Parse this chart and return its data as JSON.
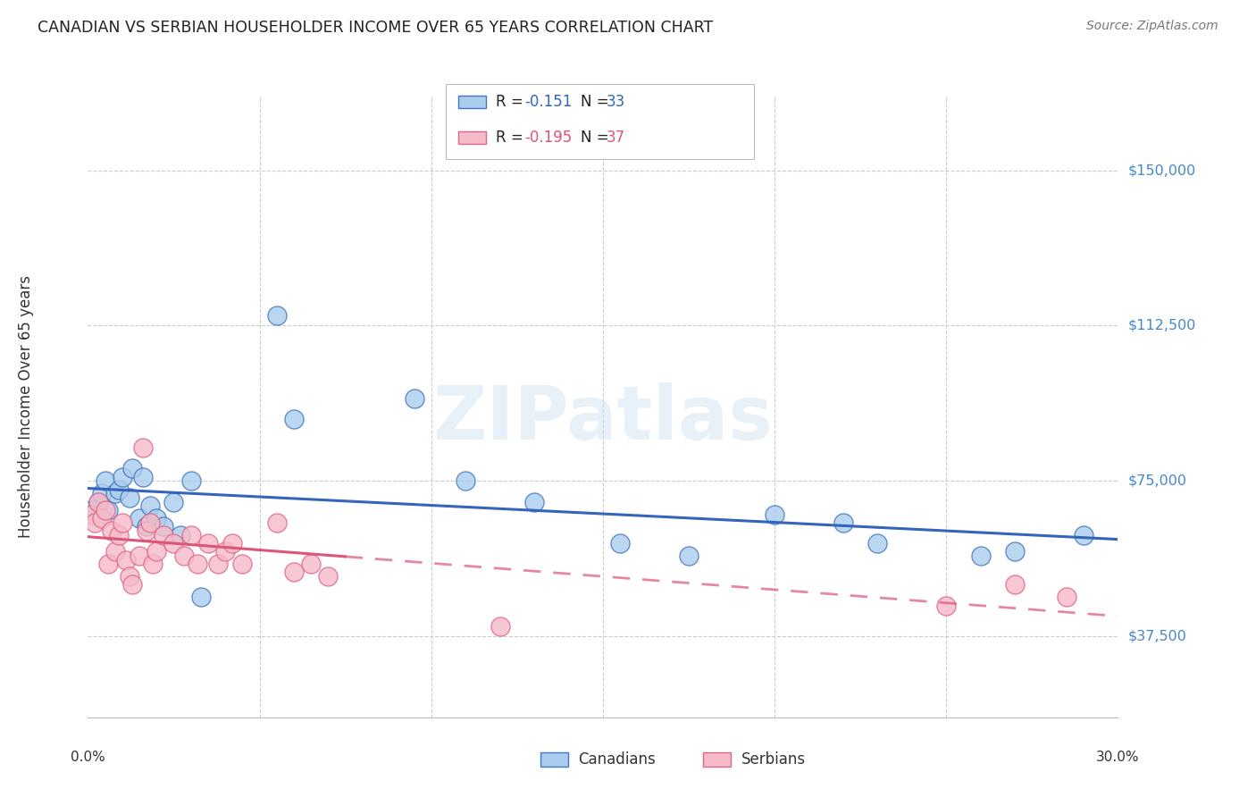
{
  "title": "CANADIAN VS SERBIAN HOUSEHOLDER INCOME OVER 65 YEARS CORRELATION CHART",
  "source": "Source: ZipAtlas.com",
  "ylabel": "Householder Income Over 65 years",
  "watermark": "ZIPatlas",
  "xlim": [
    0.0,
    0.3
  ],
  "ylim": [
    18000,
    168000
  ],
  "ytick_vals": [
    37500,
    75000,
    112500,
    150000
  ],
  "ytick_labels": [
    "$37,500",
    "$75,000",
    "$112,500",
    "$150,000"
  ],
  "canadians_x": [
    0.001,
    0.003,
    0.004,
    0.005,
    0.006,
    0.008,
    0.009,
    0.01,
    0.012,
    0.013,
    0.015,
    0.016,
    0.017,
    0.018,
    0.02,
    0.022,
    0.025,
    0.027,
    0.03,
    0.033,
    0.055,
    0.06,
    0.095,
    0.11,
    0.13,
    0.155,
    0.175,
    0.2,
    0.22,
    0.23,
    0.26,
    0.27,
    0.29
  ],
  "canadians_y": [
    68000,
    70000,
    72000,
    75000,
    68000,
    72000,
    73000,
    76000,
    71000,
    78000,
    66000,
    76000,
    64000,
    69000,
    66000,
    64000,
    70000,
    62000,
    75000,
    47000,
    115000,
    90000,
    95000,
    75000,
    70000,
    60000,
    57000,
    67000,
    65000,
    60000,
    57000,
    58000,
    62000
  ],
  "serbians_x": [
    0.001,
    0.002,
    0.003,
    0.004,
    0.005,
    0.006,
    0.007,
    0.008,
    0.009,
    0.01,
    0.011,
    0.012,
    0.013,
    0.015,
    0.016,
    0.017,
    0.018,
    0.019,
    0.02,
    0.022,
    0.025,
    0.028,
    0.03,
    0.032,
    0.035,
    0.038,
    0.04,
    0.042,
    0.045,
    0.055,
    0.06,
    0.065,
    0.07,
    0.12,
    0.25,
    0.27,
    0.285
  ],
  "serbians_y": [
    67000,
    65000,
    70000,
    66000,
    68000,
    55000,
    63000,
    58000,
    62000,
    65000,
    56000,
    52000,
    50000,
    57000,
    83000,
    63000,
    65000,
    55000,
    58000,
    62000,
    60000,
    57000,
    62000,
    55000,
    60000,
    55000,
    58000,
    60000,
    55000,
    65000,
    53000,
    55000,
    52000,
    40000,
    45000,
    50000,
    47000
  ],
  "blue_fill": "#aaccee",
  "blue_edge": "#4477bb",
  "pink_fill": "#f5bbc8",
  "pink_edge": "#dd6688",
  "blue_line": "#3366bb",
  "pink_line": "#dd5577",
  "grid_color": "#cccccc",
  "right_tick_color": "#4488cc",
  "title_color": "#222222",
  "source_color": "#777777",
  "ylabel_color": "#333333",
  "bg_color": "#ffffff"
}
